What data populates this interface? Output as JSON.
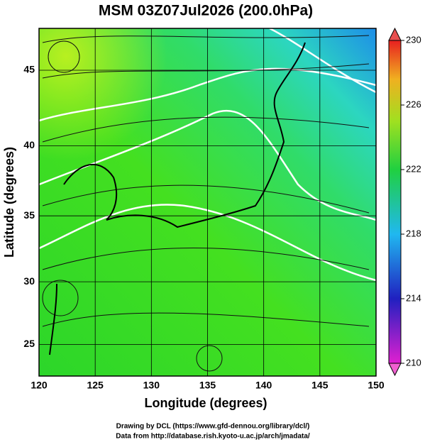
{
  "chart_data": {
    "type": "map",
    "title": "MSM 03Z07Jul2026 (200.0hPa)",
    "x_label": "Longitude (degrees)",
    "y_label": "Latitude  (degrees)",
    "xlim": [
      120,
      150
    ],
    "xticks": [
      120,
      125,
      130,
      135,
      140,
      145,
      150
    ],
    "ylim": [
      22.4,
      47.6
    ],
    "yticks": [
      25,
      30,
      35,
      40,
      45
    ],
    "projection": "mercator",
    "colorbar": {
      "lim": [
        210,
        230
      ],
      "ticks": [
        210,
        214,
        218,
        222,
        226,
        230
      ]
    },
    "credits": [
      "Drawing by DCL (https://www.gfd-dennou.org/library/dcl/)",
      "Data from http://database.rish.kyoto-u.ac.jp/arch/jmadata/"
    ]
  }
}
